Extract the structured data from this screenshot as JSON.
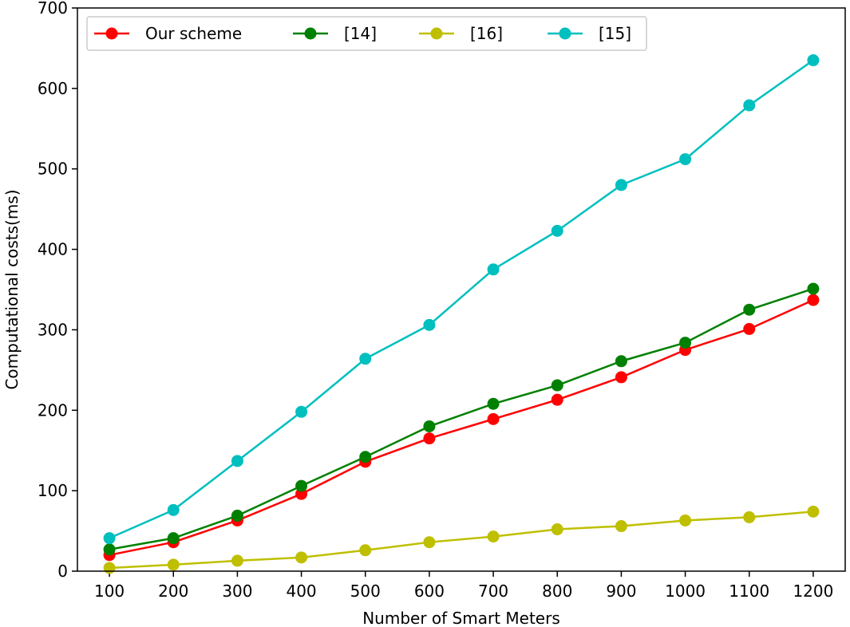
{
  "chart_data": {
    "type": "line",
    "title": "",
    "xlabel": "Number of Smart Meters",
    "ylabel": "Computational costs(ms)",
    "x": [
      100,
      200,
      300,
      400,
      500,
      600,
      700,
      800,
      900,
      1000,
      1100,
      1200
    ],
    "xticks": [
      "100",
      "200",
      "300",
      "400",
      "500",
      "600",
      "700",
      "800",
      "900",
      "1000",
      "1100",
      "1200"
    ],
    "xlim": [
      50,
      1250
    ],
    "ylim": [
      0,
      700
    ],
    "yticks": [
      "0",
      "100",
      "200",
      "300",
      "400",
      "500",
      "600",
      "700"
    ],
    "ytick_values": [
      0,
      100,
      200,
      300,
      400,
      500,
      600,
      700
    ],
    "legend_position": "top-left",
    "series": [
      {
        "name": "Our scheme",
        "color": "#ff0000",
        "values": [
          20,
          36,
          63,
          96,
          136,
          165,
          189,
          213,
          241,
          275,
          301,
          337
        ]
      },
      {
        "name": "[14]",
        "color": "#008000",
        "values": [
          27,
          41,
          69,
          106,
          142,
          180,
          208,
          231,
          261,
          284,
          325,
          351
        ]
      },
      {
        "name": "[16]",
        "color": "#bfbf00",
        "values": [
          4,
          8,
          13,
          17,
          26,
          36,
          43,
          52,
          56,
          63,
          67,
          74
        ]
      },
      {
        "name": "[15]",
        "color": "#00bfbf",
        "values": [
          41,
          76,
          137,
          198,
          264,
          306,
          375,
          423,
          480,
          512,
          579,
          635
        ]
      }
    ]
  }
}
